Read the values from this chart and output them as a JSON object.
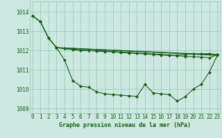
{
  "bg_color": "#cce8e0",
  "grid_color": "#99ccbb",
  "line_color": "#1a5c1a",
  "xlabel": "Graphe pression niveau de la mer (hPa)",
  "ylim": [
    1008.75,
    1014.55
  ],
  "xlim": [
    -0.3,
    23.3
  ],
  "yticks": [
    1009,
    1010,
    1011,
    1012,
    1013,
    1014
  ],
  "xticks": [
    0,
    1,
    2,
    3,
    4,
    5,
    6,
    7,
    8,
    9,
    10,
    11,
    12,
    13,
    14,
    15,
    16,
    17,
    18,
    19,
    20,
    21,
    22,
    23
  ],
  "series1_x": [
    0,
    1,
    2,
    3,
    4,
    5,
    6,
    7,
    8,
    9,
    10,
    11,
    12,
    13,
    14,
    15,
    16,
    17,
    18,
    19,
    20,
    21,
    22,
    23
  ],
  "series1_y": [
    1013.8,
    1013.5,
    1012.65,
    1012.15,
    1011.5,
    1010.45,
    1010.15,
    1010.1,
    1009.85,
    1009.75,
    1009.72,
    1009.68,
    1009.65,
    1009.62,
    1010.25,
    1009.8,
    1009.75,
    1009.72,
    1009.38,
    1009.6,
    1010.0,
    1010.25,
    1010.88,
    1011.75
  ],
  "series2_x": [
    0,
    1,
    2,
    3,
    4,
    5,
    6,
    7,
    8,
    9,
    10,
    11,
    12,
    13,
    14,
    15,
    16,
    17,
    18,
    19,
    20,
    21,
    22,
    23
  ],
  "series2_y": [
    1013.8,
    1013.5,
    1012.65,
    1012.15,
    1012.1,
    1012.05,
    1012.0,
    1012.0,
    1012.0,
    1011.97,
    1011.95,
    1011.92,
    1011.9,
    1011.87,
    1011.85,
    1011.82,
    1011.8,
    1011.77,
    1011.75,
    1011.8,
    1011.82,
    1011.83,
    1011.84,
    1011.78
  ],
  "series3_x": [
    0,
    1,
    2,
    3,
    23
  ],
  "series3_y": [
    1013.8,
    1013.5,
    1012.65,
    1012.15,
    1011.75
  ],
  "series4_x": [
    3,
    23
  ],
  "series4_y": [
    1012.15,
    1011.78
  ],
  "series5_x": [
    3,
    4,
    5,
    6,
    7,
    8,
    9,
    10,
    11,
    12,
    13,
    14,
    15,
    16,
    17,
    18,
    19,
    20,
    21,
    22,
    23
  ],
  "series5_y": [
    1012.15,
    1012.1,
    1012.07,
    1012.03,
    1012.0,
    1011.97,
    1011.95,
    1011.93,
    1011.9,
    1011.87,
    1011.85,
    1011.82,
    1011.8,
    1011.77,
    1011.74,
    1011.73,
    1011.7,
    1011.68,
    1011.66,
    1011.63,
    1011.78
  ]
}
